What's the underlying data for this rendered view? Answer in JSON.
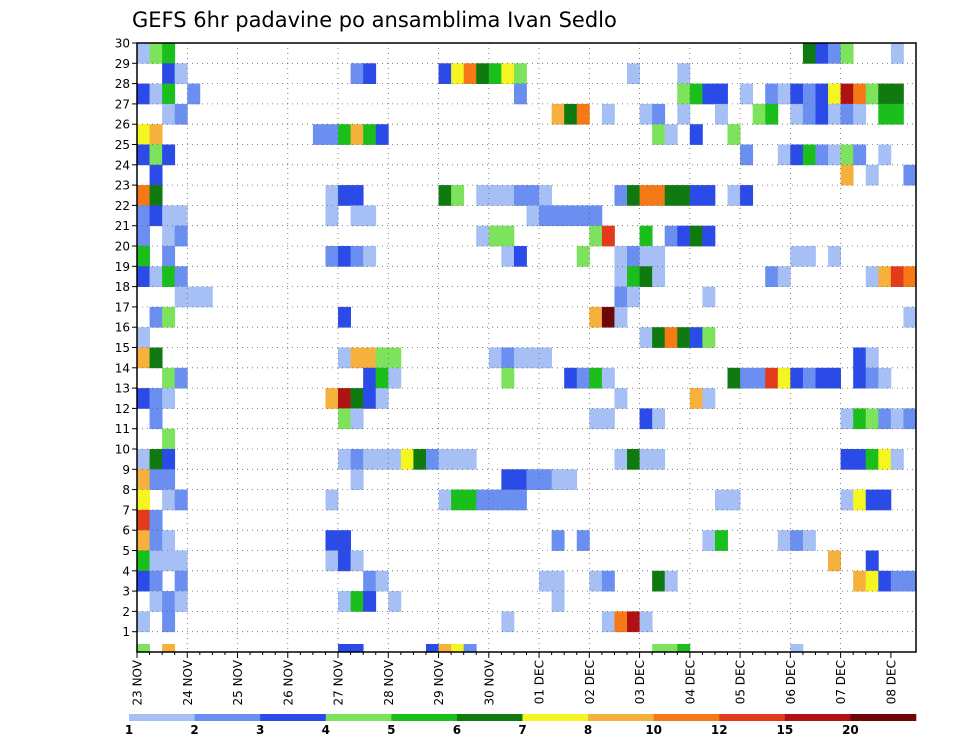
{
  "chart_data": {
    "type": "heatmap",
    "title": "GEFS 6hr padavine po ansamblima Ivan Sedlo",
    "x_tick_labels": [
      "23 NOV",
      "24 NOV",
      "25 NOV",
      "26 NOV",
      "27 NOV",
      "28 NOV",
      "29 NOV",
      "30 NOV",
      "01 DEC",
      "02 DEC",
      "03 DEC",
      "04 DEC",
      "05 DEC",
      "06 DEC",
      "07 DEC",
      "08 DEC"
    ],
    "x_range_6h_steps": [
      0,
      61
    ],
    "y_tick_labels": [
      "1",
      "2",
      "3",
      "4",
      "5",
      "6",
      "7",
      "8",
      "9",
      "10",
      "11",
      "12",
      "13",
      "14",
      "15",
      "16",
      "17",
      "18",
      "19",
      "20",
      "21",
      "22",
      "23",
      "24",
      "25",
      "26",
      "27",
      "28",
      "29",
      "30"
    ],
    "y_range": [
      0,
      30
    ],
    "grid": true,
    "color_levels": [
      1,
      2,
      3,
      4,
      5,
      6,
      7,
      8,
      10,
      12,
      15,
      20
    ],
    "level_colors": [
      "#a6c0f5",
      "#6a8ff0",
      "#2b4be8",
      "#7ee35c",
      "#1bbf1b",
      "#0f7a0f",
      "#f5f522",
      "#f5b13c",
      "#f57a16",
      "#e33a1c",
      "#b01212",
      "#6e0808"
    ],
    "cells_note": "each cell: [member, step, colorIndex]",
    "cells": [
      [
        30,
        0,
        0
      ],
      [
        30,
        1,
        3
      ],
      [
        30,
        2,
        4
      ],
      [
        30,
        53,
        5
      ],
      [
        30,
        54,
        2
      ],
      [
        30,
        55,
        1
      ],
      [
        30,
        56,
        3
      ],
      [
        30,
        60,
        0
      ],
      [
        29,
        2,
        2
      ],
      [
        29,
        3,
        0
      ],
      [
        29,
        17,
        1
      ],
      [
        29,
        18,
        2
      ],
      [
        29,
        24,
        2
      ],
      [
        29,
        25,
        6
      ],
      [
        29,
        26,
        8
      ],
      [
        29,
        27,
        5
      ],
      [
        29,
        28,
        4
      ],
      [
        29,
        29,
        6
      ],
      [
        29,
        30,
        3
      ],
      [
        29,
        39,
        0
      ],
      [
        29,
        43,
        0
      ],
      [
        28,
        0,
        2
      ],
      [
        28,
        1,
        0
      ],
      [
        28,
        2,
        4
      ],
      [
        28,
        4,
        1
      ],
      [
        28,
        30,
        1
      ],
      [
        28,
        43,
        3
      ],
      [
        28,
        44,
        4
      ],
      [
        28,
        45,
        2
      ],
      [
        28,
        46,
        2
      ],
      [
        28,
        48,
        0
      ],
      [
        28,
        50,
        1
      ],
      [
        28,
        51,
        0
      ],
      [
        28,
        52,
        2
      ],
      [
        28,
        53,
        1
      ],
      [
        28,
        54,
        2
      ],
      [
        28,
        55,
        6
      ],
      [
        28,
        56,
        10
      ],
      [
        28,
        57,
        8
      ],
      [
        28,
        58,
        3
      ],
      [
        28,
        59,
        5
      ],
      [
        28,
        60,
        5
      ],
      [
        27,
        2,
        0
      ],
      [
        27,
        3,
        1
      ],
      [
        27,
        33,
        7
      ],
      [
        27,
        34,
        5
      ],
      [
        27,
        35,
        8
      ],
      [
        27,
        37,
        0
      ],
      [
        27,
        40,
        0
      ],
      [
        27,
        41,
        1
      ],
      [
        27,
        43,
        0
      ],
      [
        27,
        46,
        0
      ],
      [
        27,
        49,
        3
      ],
      [
        27,
        50,
        4
      ],
      [
        27,
        52,
        0
      ],
      [
        27,
        53,
        1
      ],
      [
        27,
        54,
        2
      ],
      [
        27,
        55,
        0
      ],
      [
        27,
        56,
        1
      ],
      [
        27,
        57,
        0
      ],
      [
        27,
        59,
        4
      ],
      [
        27,
        60,
        4
      ],
      [
        26,
        0,
        6
      ],
      [
        26,
        1,
        7
      ],
      [
        26,
        14,
        1
      ],
      [
        26,
        15,
        1
      ],
      [
        26,
        16,
        4
      ],
      [
        26,
        17,
        7
      ],
      [
        26,
        18,
        4
      ],
      [
        26,
        19,
        2
      ],
      [
        26,
        41,
        3
      ],
      [
        26,
        42,
        0
      ],
      [
        26,
        44,
        2
      ],
      [
        26,
        47,
        3
      ],
      [
        25,
        0,
        2
      ],
      [
        25,
        1,
        3
      ],
      [
        25,
        2,
        2
      ],
      [
        25,
        48,
        1
      ],
      [
        25,
        51,
        0
      ],
      [
        25,
        52,
        2
      ],
      [
        25,
        53,
        4
      ],
      [
        25,
        54,
        1
      ],
      [
        25,
        55,
        0
      ],
      [
        25,
        56,
        3
      ],
      [
        25,
        57,
        1
      ],
      [
        25,
        59,
        0
      ],
      [
        24,
        1,
        2
      ],
      [
        24,
        56,
        7
      ],
      [
        24,
        58,
        0
      ],
      [
        24,
        61,
        1
      ],
      [
        23,
        0,
        8
      ],
      [
        23,
        1,
        5
      ],
      [
        23,
        15,
        0
      ],
      [
        23,
        16,
        2
      ],
      [
        23,
        17,
        2
      ],
      [
        23,
        24,
        5
      ],
      [
        23,
        25,
        3
      ],
      [
        23,
        27,
        0
      ],
      [
        23,
        28,
        0
      ],
      [
        23,
        29,
        0
      ],
      [
        23,
        30,
        1
      ],
      [
        23,
        31,
        1
      ],
      [
        23,
        32,
        0
      ],
      [
        23,
        38,
        1
      ],
      [
        23,
        39,
        5
      ],
      [
        23,
        40,
        8
      ],
      [
        23,
        41,
        8
      ],
      [
        23,
        42,
        5
      ],
      [
        23,
        43,
        5
      ],
      [
        23,
        44,
        2
      ],
      [
        23,
        45,
        2
      ],
      [
        23,
        47,
        0
      ],
      [
        23,
        48,
        2
      ],
      [
        22,
        0,
        1
      ],
      [
        22,
        1,
        2
      ],
      [
        22,
        2,
        0
      ],
      [
        22,
        3,
        0
      ],
      [
        22,
        15,
        0
      ],
      [
        22,
        17,
        0
      ],
      [
        22,
        18,
        0
      ],
      [
        22,
        31,
        0
      ],
      [
        22,
        32,
        1
      ],
      [
        22,
        33,
        1
      ],
      [
        22,
        34,
        1
      ],
      [
        22,
        35,
        1
      ],
      [
        22,
        36,
        1
      ],
      [
        21,
        0,
        1
      ],
      [
        21,
        2,
        0
      ],
      [
        21,
        3,
        1
      ],
      [
        21,
        27,
        0
      ],
      [
        21,
        28,
        3
      ],
      [
        21,
        29,
        3
      ],
      [
        21,
        36,
        3
      ],
      [
        21,
        37,
        9
      ],
      [
        21,
        40,
        4
      ],
      [
        21,
        42,
        1
      ],
      [
        21,
        43,
        2
      ],
      [
        21,
        44,
        5
      ],
      [
        21,
        45,
        2
      ],
      [
        20,
        0,
        4
      ],
      [
        20,
        2,
        1
      ],
      [
        20,
        15,
        1
      ],
      [
        20,
        16,
        2
      ],
      [
        20,
        17,
        1
      ],
      [
        20,
        18,
        0
      ],
      [
        20,
        29,
        0
      ],
      [
        20,
        30,
        2
      ],
      [
        20,
        35,
        3
      ],
      [
        20,
        38,
        0
      ],
      [
        20,
        39,
        1
      ],
      [
        20,
        40,
        0
      ],
      [
        20,
        41,
        0
      ],
      [
        20,
        52,
        0
      ],
      [
        20,
        53,
        0
      ],
      [
        20,
        55,
        0
      ],
      [
        19,
        0,
        2
      ],
      [
        19,
        1,
        0
      ],
      [
        19,
        2,
        4
      ],
      [
        19,
        3,
        1
      ],
      [
        19,
        38,
        0
      ],
      [
        19,
        39,
        4
      ],
      [
        19,
        40,
        5
      ],
      [
        19,
        41,
        0
      ],
      [
        19,
        50,
        1
      ],
      [
        19,
        51,
        0
      ],
      [
        19,
        58,
        0
      ],
      [
        19,
        59,
        7
      ],
      [
        19,
        60,
        9
      ],
      [
        19,
        61,
        8
      ],
      [
        18,
        3,
        0
      ],
      [
        18,
        4,
        0
      ],
      [
        18,
        5,
        0
      ],
      [
        18,
        38,
        1
      ],
      [
        18,
        39,
        0
      ],
      [
        18,
        45,
        0
      ],
      [
        17,
        1,
        1
      ],
      [
        17,
        2,
        3
      ],
      [
        17,
        16,
        2
      ],
      [
        17,
        36,
        7
      ],
      [
        17,
        37,
        11
      ],
      [
        17,
        38,
        0
      ],
      [
        17,
        61,
        0
      ],
      [
        16,
        0,
        0
      ],
      [
        16,
        40,
        0
      ],
      [
        16,
        41,
        5
      ],
      [
        16,
        42,
        8
      ],
      [
        16,
        43,
        5
      ],
      [
        16,
        44,
        2
      ],
      [
        16,
        45,
        3
      ],
      [
        15,
        0,
        7
      ],
      [
        15,
        1,
        5
      ],
      [
        15,
        16,
        0
      ],
      [
        15,
        17,
        7
      ],
      [
        15,
        18,
        7
      ],
      [
        15,
        19,
        3
      ],
      [
        15,
        20,
        3
      ],
      [
        15,
        28,
        0
      ],
      [
        15,
        29,
        1
      ],
      [
        15,
        30,
        0
      ],
      [
        15,
        31,
        0
      ],
      [
        15,
        32,
        0
      ],
      [
        15,
        57,
        2
      ],
      [
        15,
        58,
        0
      ],
      [
        14,
        2,
        3
      ],
      [
        14,
        3,
        1
      ],
      [
        14,
        18,
        2
      ],
      [
        14,
        19,
        4
      ],
      [
        14,
        20,
        0
      ],
      [
        14,
        29,
        3
      ],
      [
        14,
        34,
        2
      ],
      [
        14,
        35,
        1
      ],
      [
        14,
        36,
        4
      ],
      [
        14,
        37,
        0
      ],
      [
        14,
        47,
        5
      ],
      [
        14,
        48,
        1
      ],
      [
        14,
        49,
        1
      ],
      [
        14,
        50,
        9
      ],
      [
        14,
        51,
        6
      ],
      [
        14,
        52,
        2
      ],
      [
        14,
        53,
        1
      ],
      [
        14,
        54,
        2
      ],
      [
        14,
        55,
        2
      ],
      [
        14,
        57,
        2
      ],
      [
        14,
        58,
        1
      ],
      [
        14,
        59,
        0
      ],
      [
        13,
        0,
        2
      ],
      [
        13,
        1,
        1
      ],
      [
        13,
        2,
        0
      ],
      [
        13,
        15,
        7
      ],
      [
        13,
        16,
        10
      ],
      [
        13,
        17,
        5
      ],
      [
        13,
        18,
        2
      ],
      [
        13,
        19,
        0
      ],
      [
        13,
        38,
        0
      ],
      [
        13,
        44,
        7
      ],
      [
        13,
        45,
        0
      ],
      [
        12,
        1,
        1
      ],
      [
        12,
        16,
        3
      ],
      [
        12,
        17,
        0
      ],
      [
        12,
        36,
        0
      ],
      [
        12,
        37,
        0
      ],
      [
        12,
        40,
        2
      ],
      [
        12,
        41,
        0
      ],
      [
        12,
        56,
        0
      ],
      [
        12,
        57,
        4
      ],
      [
        12,
        58,
        3
      ],
      [
        12,
        59,
        1
      ],
      [
        12,
        60,
        0
      ],
      [
        12,
        61,
        1
      ],
      [
        11,
        2,
        3
      ],
      [
        10,
        0,
        0
      ],
      [
        10,
        1,
        5
      ],
      [
        10,
        2,
        2
      ],
      [
        10,
        16,
        0
      ],
      [
        10,
        17,
        1
      ],
      [
        10,
        18,
        0
      ],
      [
        10,
        19,
        0
      ],
      [
        10,
        20,
        0
      ],
      [
        10,
        21,
        6
      ],
      [
        10,
        22,
        5
      ],
      [
        10,
        23,
        1
      ],
      [
        10,
        24,
        0
      ],
      [
        10,
        25,
        0
      ],
      [
        10,
        26,
        0
      ],
      [
        10,
        38,
        0
      ],
      [
        10,
        39,
        5
      ],
      [
        10,
        40,
        0
      ],
      [
        10,
        41,
        0
      ],
      [
        10,
        56,
        2
      ],
      [
        10,
        57,
        2
      ],
      [
        10,
        58,
        4
      ],
      [
        10,
        59,
        6
      ],
      [
        10,
        60,
        0
      ],
      [
        9,
        0,
        7
      ],
      [
        9,
        1,
        1
      ],
      [
        9,
        2,
        1
      ],
      [
        9,
        17,
        0
      ],
      [
        9,
        29,
        2
      ],
      [
        9,
        30,
        2
      ],
      [
        9,
        31,
        1
      ],
      [
        9,
        32,
        1
      ],
      [
        9,
        33,
        0
      ],
      [
        9,
        34,
        0
      ],
      [
        8,
        0,
        6
      ],
      [
        8,
        2,
        0
      ],
      [
        8,
        3,
        1
      ],
      [
        8,
        15,
        0
      ],
      [
        8,
        24,
        0
      ],
      [
        8,
        25,
        4
      ],
      [
        8,
        26,
        4
      ],
      [
        8,
        27,
        1
      ],
      [
        8,
        28,
        1
      ],
      [
        8,
        29,
        1
      ],
      [
        8,
        30,
        1
      ],
      [
        8,
        46,
        0
      ],
      [
        8,
        47,
        0
      ],
      [
        8,
        56,
        0
      ],
      [
        8,
        57,
        6
      ],
      [
        8,
        58,
        2
      ],
      [
        8,
        59,
        2
      ],
      [
        7,
        0,
        9
      ],
      [
        7,
        1,
        1
      ],
      [
        6,
        0,
        7
      ],
      [
        6,
        1,
        1
      ],
      [
        6,
        2,
        0
      ],
      [
        6,
        15,
        2
      ],
      [
        6,
        16,
        2
      ],
      [
        6,
        33,
        1
      ],
      [
        6,
        35,
        1
      ],
      [
        6,
        45,
        0
      ],
      [
        6,
        46,
        4
      ],
      [
        6,
        51,
        0
      ],
      [
        6,
        52,
        1
      ],
      [
        6,
        53,
        0
      ],
      [
        5,
        0,
        4
      ],
      [
        5,
        1,
        0
      ],
      [
        5,
        2,
        0
      ],
      [
        5,
        3,
        0
      ],
      [
        5,
        15,
        0
      ],
      [
        5,
        16,
        2
      ],
      [
        5,
        17,
        0
      ],
      [
        5,
        55,
        7
      ],
      [
        5,
        58,
        2
      ],
      [
        4,
        0,
        2
      ],
      [
        4,
        1,
        1
      ],
      [
        4,
        3,
        1
      ],
      [
        4,
        18,
        1
      ],
      [
        4,
        19,
        0
      ],
      [
        4,
        32,
        0
      ],
      [
        4,
        33,
        0
      ],
      [
        4,
        36,
        0
      ],
      [
        4,
        37,
        1
      ],
      [
        4,
        41,
        5
      ],
      [
        4,
        42,
        0
      ],
      [
        4,
        57,
        7
      ],
      [
        4,
        58,
        6
      ],
      [
        4,
        59,
        2
      ],
      [
        4,
        60,
        1
      ],
      [
        4,
        61,
        1
      ],
      [
        3,
        1,
        0
      ],
      [
        3,
        2,
        1
      ],
      [
        3,
        3,
        0
      ],
      [
        3,
        16,
        0
      ],
      [
        3,
        17,
        4
      ],
      [
        3,
        18,
        2
      ],
      [
        3,
        20,
        0
      ],
      [
        3,
        33,
        0
      ],
      [
        2,
        0,
        0
      ],
      [
        2,
        2,
        1
      ],
      [
        2,
        29,
        0
      ],
      [
        2,
        37,
        0
      ],
      [
        2,
        38,
        8
      ],
      [
        2,
        39,
        10
      ],
      [
        2,
        40,
        0
      ]
    ],
    "bottom_row_cells": [
      [
        0,
        3
      ],
      [
        2,
        7
      ],
      [
        16,
        2
      ],
      [
        17,
        2
      ],
      [
        23,
        2
      ],
      [
        24,
        7
      ],
      [
        25,
        6
      ],
      [
        26,
        1
      ],
      [
        41,
        3
      ],
      [
        42,
        3
      ],
      [
        43,
        4
      ],
      [
        52,
        0
      ]
    ],
    "colorbar_labels": [
      "1",
      "2",
      "3",
      "4",
      "5",
      "6",
      "7",
      "8",
      "10",
      "12",
      "15",
      "20"
    ]
  }
}
